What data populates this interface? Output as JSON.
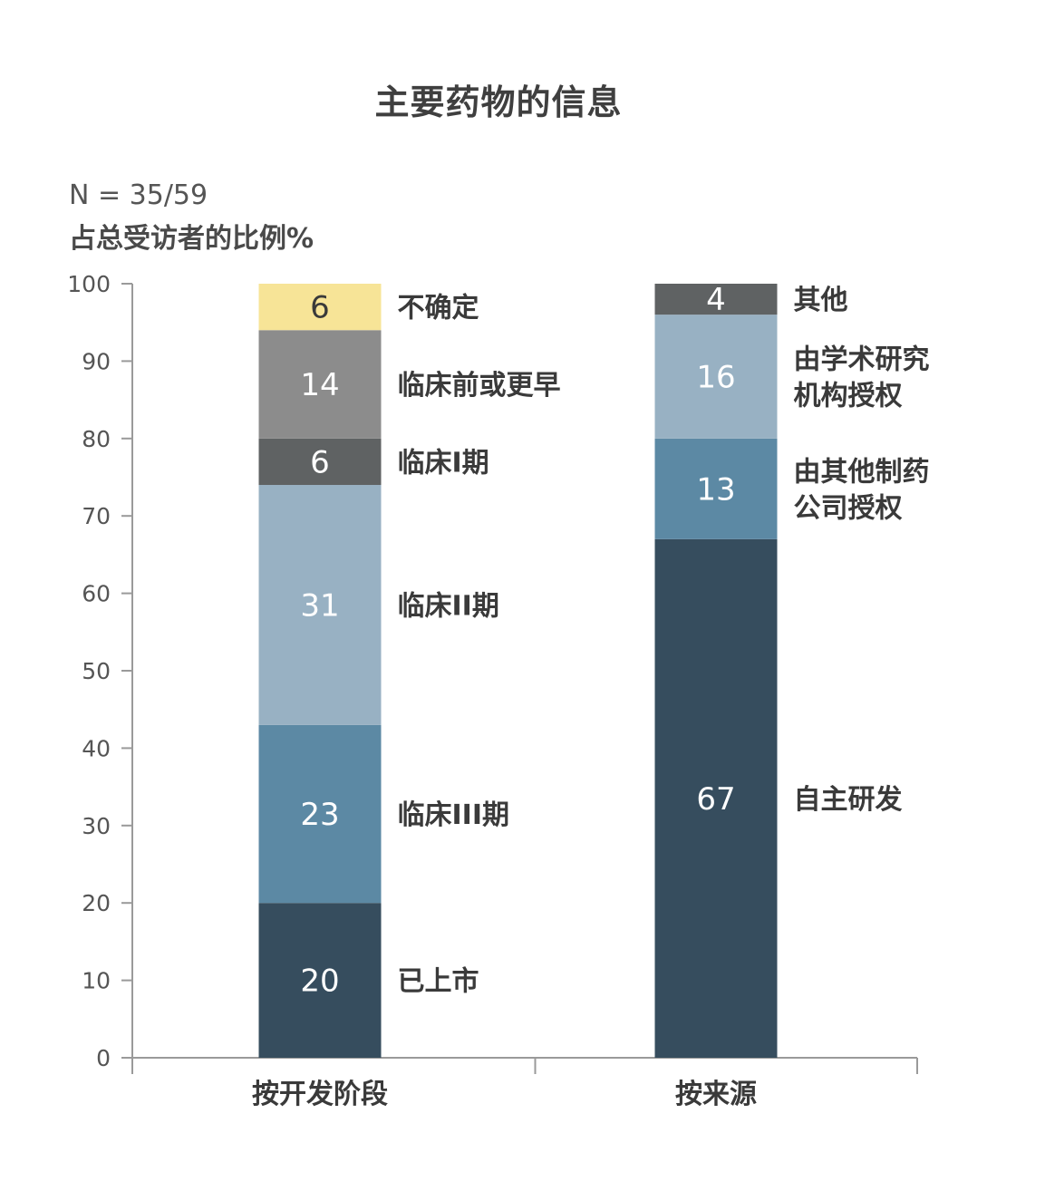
{
  "chart_data": {
    "type": "bar",
    "stacked": true,
    "title": "主要药物的信息",
    "subtitle": "N = 35/59",
    "ylabel": "占总受访者的比例%",
    "ylim": [
      0,
      100
    ],
    "yticks": [
      0,
      10,
      20,
      30,
      40,
      50,
      60,
      70,
      80,
      90,
      100
    ],
    "grid": false,
    "categories": [
      "按开发阶段",
      "按来源"
    ],
    "stacks": [
      {
        "category": "按开发阶段",
        "segments": [
          {
            "name": "已上市",
            "value": 20,
            "color": "#364d5e"
          },
          {
            "name": "临床III期",
            "value": 23,
            "color": "#5c89a4"
          },
          {
            "name": "临床II期",
            "value": 31,
            "color": "#98b1c3"
          },
          {
            "name": "临床I期",
            "value": 6,
            "color": "#5f6263"
          },
          {
            "name": "临床前或更早",
            "value": 14,
            "color": "#8c8c8c"
          },
          {
            "name": "不确定",
            "value": 6,
            "color": "#f7e497"
          }
        ]
      },
      {
        "category": "按来源",
        "segments": [
          {
            "name": "自主研发",
            "value": 67,
            "color": "#364d5e"
          },
          {
            "name": "由其他制药公司授权",
            "value": 13,
            "color": "#5c89a4"
          },
          {
            "name": "由学术研究机构授权",
            "value": 16,
            "color": "#98b1c3"
          },
          {
            "name": "其他",
            "value": 4,
            "color": "#5f6263"
          }
        ]
      }
    ]
  },
  "segment_label_lines": {
    "由其他制药公司授权": [
      "由其他制药",
      "公司授权"
    ],
    "由学术研究机构授权": [
      "由学术研究",
      "机构授权"
    ]
  },
  "colors": {
    "axis": "#9a9a9a",
    "tick_text": "#555555",
    "legend_text": "#3a3a3a",
    "value_text_light": "#ffffff",
    "value_text_dark": "#3a3a3a"
  }
}
